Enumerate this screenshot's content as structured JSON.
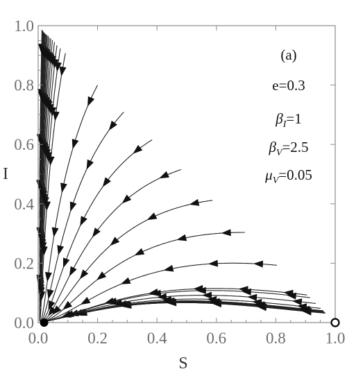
{
  "chart_data": {
    "type": "streamplot",
    "panel_label": "(a)",
    "xlabel": "S",
    "ylabel": "I",
    "xlim": [
      0,
      1
    ],
    "ylim": [
      0,
      1
    ],
    "xticks": [
      "0.0",
      "0.2",
      "0.4",
      "0.6",
      "0.8",
      "1.0"
    ],
    "yticks": [
      "0.0",
      "0.2",
      "0.4",
      "0.6",
      "0.8",
      "1.0"
    ],
    "parameters": [
      {
        "name": "e",
        "value": "0.3"
      },
      {
        "name": "β",
        "sub": "I",
        "value": "1"
      },
      {
        "name": "β",
        "sub": "V",
        "value": "2.5"
      },
      {
        "name": "μ",
        "sub": "V",
        "value": "0.05"
      }
    ],
    "equilibria": [
      {
        "S": 0.02,
        "I": 0.0,
        "style": "filled"
      },
      {
        "S": 1.0,
        "I": 0.0,
        "style": "open"
      }
    ],
    "model": {
      "beta_I": 1,
      "beta_V": 2.5,
      "mu_V": 0.05,
      "e": 0.3
    }
  }
}
